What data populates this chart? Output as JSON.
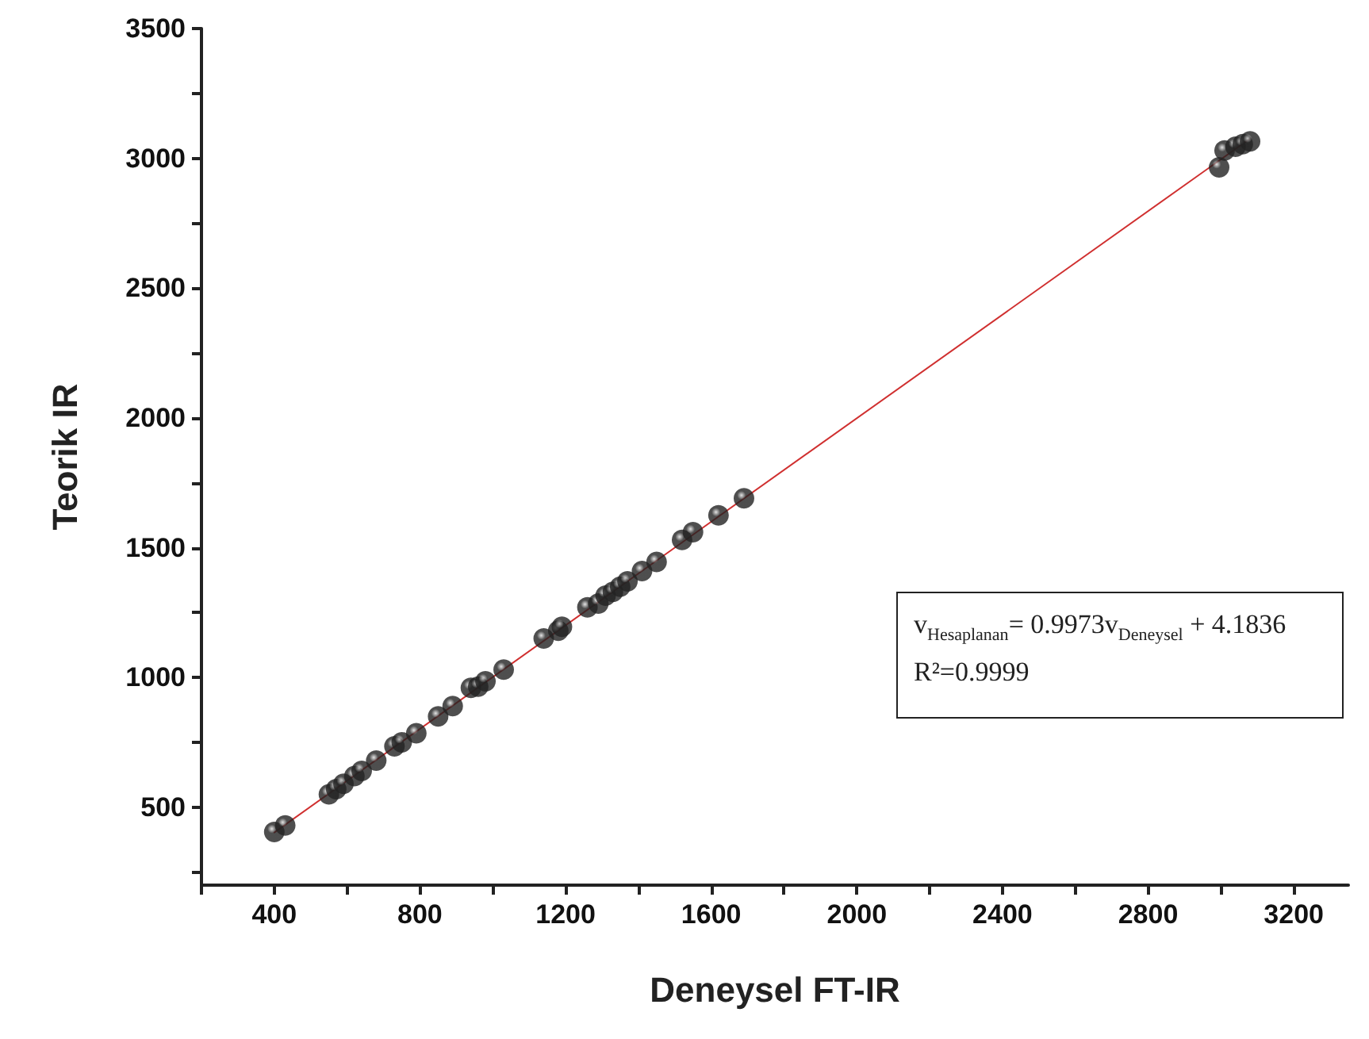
{
  "chart_data": {
    "type": "scatter",
    "xlabel": "Deneysel FT-IR",
    "ylabel": "Teorik IR",
    "xlim": [
      200,
      3350
    ],
    "ylim": [
      200,
      3500
    ],
    "xticks": [
      {
        "value": 200,
        "label": null
      },
      400,
      {
        "value": 600,
        "label": null
      },
      800,
      {
        "value": 1000,
        "label": null
      },
      1200,
      {
        "value": 1400,
        "label": null
      },
      1600,
      {
        "value": 1800,
        "label": null
      },
      2000,
      {
        "value": 2200,
        "label": null
      },
      2400,
      {
        "value": 2600,
        "label": null
      },
      2800,
      {
        "value": 3000,
        "label": null
      },
      3200
    ],
    "yticks": [
      {
        "value": 250,
        "label": null
      },
      500,
      {
        "value": 750,
        "label": null
      },
      1000,
      {
        "value": 1250,
        "label": null
      },
      1500,
      {
        "value": 1750,
        "label": null
      },
      2000,
      {
        "value": 2250,
        "label": null
      },
      2500,
      {
        "value": 2750,
        "label": null
      },
      3000,
      {
        "value": 3250,
        "label": null
      },
      3500
    ],
    "marker": "circle",
    "grid": false,
    "series": [
      {
        "color": "#222222",
        "x": [
          400,
          430,
          550,
          570,
          590,
          620,
          640,
          680,
          730,
          750,
          790,
          850,
          890,
          940,
          960,
          980,
          1030,
          1140,
          1180,
          1190,
          1260,
          1290,
          1310,
          1330,
          1350,
          1370,
          1410,
          1450,
          1520,
          1550,
          1620,
          1690,
          2995,
          3010,
          3040,
          3060,
          3080
        ],
        "values": [
          405,
          430,
          550,
          570,
          590,
          620,
          640,
          680,
          735,
          750,
          785,
          850,
          890,
          960,
          965,
          985,
          1030,
          1150,
          1180,
          1195,
          1270,
          1285,
          1315,
          1330,
          1350,
          1370,
          1410,
          1445,
          1530,
          1560,
          1625,
          1690,
          2965,
          3030,
          3045,
          3055,
          3065
        ]
      },
      {
        "type": "line",
        "marker": "none",
        "color": "#d03030",
        "line_style": "solid",
        "x": [
          400,
          3080
        ],
        "values": [
          403,
          3076
        ]
      }
    ],
    "annotations": [
      "v$_{Hesaplanan}$= 0.9973v$_{Deneysel}$ + 4.1836",
      "R²=0.9999"
    ]
  }
}
